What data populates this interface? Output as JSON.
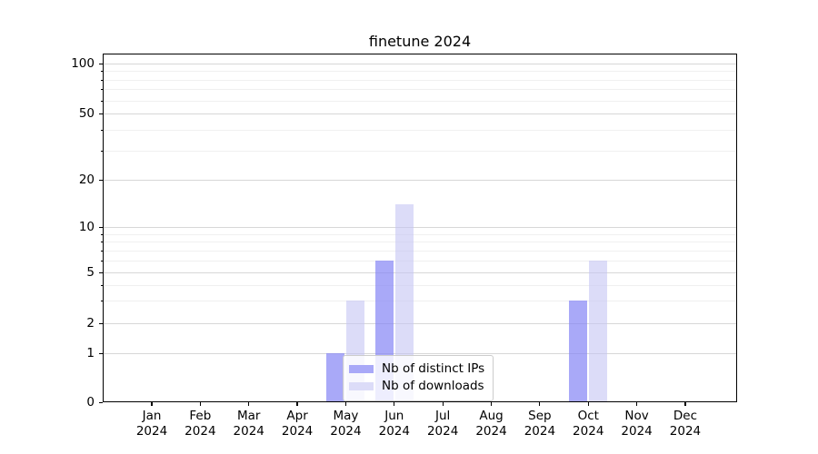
{
  "chart_data": {
    "type": "bar",
    "title": "finetune 2024",
    "categories": [
      "Jan 2024",
      "Feb 2024",
      "Mar 2024",
      "Apr 2024",
      "May 2024",
      "Jun 2024",
      "Jul 2024",
      "Aug 2024",
      "Sep 2024",
      "Oct 2024",
      "Nov 2024",
      "Dec 2024"
    ],
    "series": [
      {
        "name": "Nb of distinct IPs",
        "color": "#a9a9f8",
        "fill": "rgba(132,132,245,0.70)",
        "values": [
          0,
          0,
          0,
          0,
          1,
          6,
          0,
          0,
          0,
          3,
          0,
          0
        ]
      },
      {
        "name": "Nb of downloads",
        "color": "#dcdcf8",
        "fill": "rgba(197,197,243,0.60)",
        "values": [
          0,
          0,
          0,
          0,
          3,
          14,
          0,
          0,
          0,
          6,
          0,
          0
        ]
      }
    ],
    "xlabel": "",
    "ylabel": "",
    "yscale": "symlog",
    "ylim": [
      0,
      115
    ],
    "yticks": [
      0,
      1,
      2,
      5,
      10,
      20,
      50,
      100
    ],
    "y_minor_ticks": [
      3,
      4,
      6,
      7,
      8,
      9,
      30,
      40,
      60,
      70,
      80,
      90
    ],
    "grid": true,
    "legend_position": "lower center"
  }
}
